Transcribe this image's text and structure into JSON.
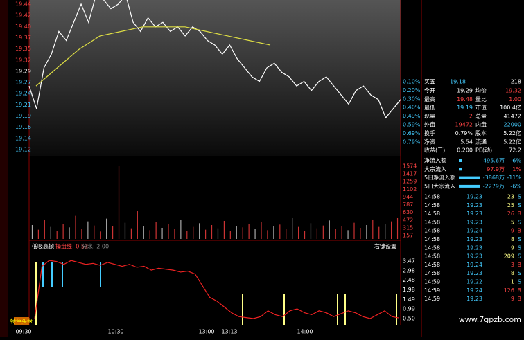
{
  "price_axis": [
    "19.44",
    "19.42",
    "19.40",
    "19.37",
    "19.35",
    "19.32",
    "19.29",
    "19.27",
    "19.24",
    "19.21",
    "19.19",
    "19.16",
    "19.14",
    "19.12"
  ],
  "pct_axis": [
    "0.10%",
    "0.20%",
    "0.30%",
    "0.40%",
    "0.49%",
    "0.59%",
    "0.69%",
    "0.79%"
  ],
  "price_line": [
    19.26,
    19.21,
    19.3,
    19.33,
    19.38,
    19.36,
    19.4,
    19.44,
    19.4,
    19.46,
    19.45,
    19.43,
    19.44,
    19.46,
    19.4,
    19.38,
    19.41,
    19.39,
    19.4,
    19.38,
    19.39,
    19.37,
    19.39,
    19.38,
    19.36,
    19.35,
    19.33,
    19.35,
    19.32,
    19.3,
    19.28,
    19.27,
    19.3,
    19.31,
    19.29,
    19.28,
    19.26,
    19.27,
    19.25,
    19.27,
    19.28,
    19.26,
    19.24,
    19.22,
    19.25,
    19.26,
    19.24,
    19.23,
    19.19,
    19.21,
    19.23
  ],
  "avg_line": [
    19.26,
    19.3,
    19.34,
    19.37,
    19.38,
    19.39,
    19.39,
    19.39,
    19.38,
    19.37,
    19.36,
    19.35
  ],
  "volume_axis": [
    "1574",
    "1417",
    "1259",
    "1102",
    "944",
    "787",
    "630",
    "472",
    "315",
    "157"
  ],
  "volumes": [
    300,
    200,
    420,
    260,
    180,
    330,
    250,
    500,
    210,
    380,
    290,
    160,
    440,
    270,
    1574,
    350,
    230,
    610,
    280,
    190,
    360,
    240,
    320,
    210,
    420,
    180,
    260,
    340,
    200,
    300,
    230,
    390,
    170,
    280,
    250,
    330,
    210,
    360,
    190,
    270,
    310,
    220,
    450,
    260,
    180,
    340,
    230,
    290,
    400,
    210,
    270,
    190,
    350,
    240,
    300,
    420,
    260,
    330,
    380,
    450
  ],
  "indicator_header": {
    "name": "低吸高抛",
    "line_label": "操盘线: 0.53",
    "split_label": "分水: 2.00",
    "settings": "右键设置"
  },
  "indicator_axis": [
    "3.47",
    "2.98",
    "2.48",
    "1.98",
    "1.49",
    "0.99",
    "0.50"
  ],
  "indicator_line": [
    0.5,
    3.2,
    3.5,
    3.45,
    3.3,
    3.5,
    3.4,
    3.3,
    3.35,
    3.25,
    3.4,
    3.3,
    3.2,
    3.3,
    3.15,
    3.2,
    3.0,
    3.1,
    3.05,
    3.0,
    2.9,
    2.95,
    2.8,
    2.2,
    1.6,
    1.4,
    1.1,
    0.8,
    0.6,
    0.55,
    0.5,
    0.6,
    0.9,
    0.7,
    0.6,
    0.9,
    1.0,
    0.8,
    0.7,
    0.9,
    0.8,
    0.6,
    0.75,
    0.9,
    0.8,
    0.6,
    0.5,
    0.7,
    0.9,
    0.6,
    0.53
  ],
  "time_axis": [
    "09:30",
    "10:30",
    "13:00",
    "13:13",
    "14:00"
  ],
  "button": "特色买盘",
  "quote": {
    "top": [
      "买五",
      "19.18",
      "218"
    ],
    "rows": [
      [
        "今开",
        "19.29",
        "均价",
        "19.32"
      ],
      [
        "最高",
        "19.48",
        "量比",
        "1.00"
      ],
      [
        "最低",
        "19.19",
        "市值",
        "100.4亿"
      ],
      [
        "现量",
        "2",
        "总量",
        "41472"
      ],
      [
        "外盘",
        "19472",
        "内盘",
        "22000"
      ],
      [
        "换手",
        "0.79%",
        "股本",
        "5.22亿"
      ],
      [
        "净资",
        "5.54",
        "流通",
        "5.22亿"
      ],
      [
        "收益(三)",
        "0.200",
        "PE(动)",
        "72.2"
      ]
    ],
    "flows": [
      [
        "净流入额",
        "-495.6万",
        "-6%"
      ],
      [
        "大宗流入",
        "97.9万",
        "1%"
      ],
      [
        "5日净流入额",
        "-3868万",
        "-11%"
      ],
      [
        "5日大宗流入",
        "-2279万",
        "-6%"
      ]
    ],
    "trades": [
      [
        "14:58",
        "19.23",
        "23",
        "S"
      ],
      [
        "14:58",
        "19.23",
        "25",
        "S"
      ],
      [
        "14:58",
        "19.23",
        "26",
        "B"
      ],
      [
        "14:58",
        "19.23",
        "5",
        "S"
      ],
      [
        "14:58",
        "19.24",
        "9",
        "B"
      ],
      [
        "14:58",
        "19.23",
        "8",
        "S"
      ],
      [
        "14:58",
        "19.23",
        "9",
        "S"
      ],
      [
        "14:58",
        "19.23",
        "209",
        "S"
      ],
      [
        "14:58",
        "19.24",
        "3",
        "B"
      ],
      [
        "14:58",
        "19.23",
        "8",
        "S"
      ],
      [
        "14:59",
        "19.22",
        "1",
        "S"
      ],
      [
        "14:59",
        "19.24",
        "126",
        "B"
      ],
      [
        "14:59",
        "19.23",
        "9",
        "B"
      ]
    ]
  },
  "watermark": "www.7gpzb.com"
}
